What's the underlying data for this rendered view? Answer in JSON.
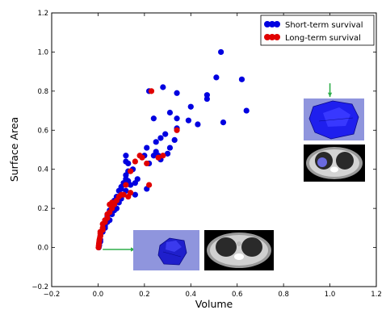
{
  "chart_data": {
    "type": "scatter",
    "xlabel": "Volume",
    "ylabel": "Surface Area",
    "xlim": [
      -0.2,
      1.2
    ],
    "ylim": [
      -0.2,
      1.2
    ],
    "x_ticks": [
      "−0.2",
      "0.0",
      "0.2",
      "0.4",
      "0.6",
      "0.8",
      "1.0",
      "1.2"
    ],
    "y_ticks": [
      "−0.2",
      "0.0",
      "0.2",
      "0.4",
      "0.6",
      "0.8",
      "1.0",
      "1.2"
    ],
    "x_tick_values": [
      -0.2,
      0.0,
      0.2,
      0.4,
      0.6,
      0.8,
      1.0,
      1.2
    ],
    "y_tick_values": [
      -0.2,
      0.0,
      0.2,
      0.4,
      0.6,
      0.8,
      1.0,
      1.2
    ],
    "grid": false,
    "legend_position": "top-right",
    "series": [
      {
        "name": "Short-term survival",
        "color": "#0000e0",
        "points": [
          [
            0.53,
            1.0
          ],
          [
            0.62,
            0.86
          ],
          [
            0.51,
            0.87
          ],
          [
            0.28,
            0.82
          ],
          [
            0.22,
            0.8
          ],
          [
            0.34,
            0.79
          ],
          [
            0.47,
            0.78
          ],
          [
            0.64,
            0.7
          ],
          [
            0.47,
            0.76
          ],
          [
            0.4,
            0.72
          ],
          [
            0.31,
            0.69
          ],
          [
            0.24,
            0.66
          ],
          [
            0.34,
            0.66
          ],
          [
            0.39,
            0.65
          ],
          [
            0.43,
            0.63
          ],
          [
            0.54,
            0.64
          ],
          [
            0.34,
            0.61
          ],
          [
            0.29,
            0.58
          ],
          [
            0.27,
            0.56
          ],
          [
            0.33,
            0.55
          ],
          [
            0.25,
            0.54
          ],
          [
            0.21,
            0.51
          ],
          [
            0.31,
            0.51
          ],
          [
            0.25,
            0.49
          ],
          [
            0.24,
            0.47
          ],
          [
            0.26,
            0.47
          ],
          [
            0.3,
            0.48
          ],
          [
            0.27,
            0.45
          ],
          [
            0.2,
            0.47
          ],
          [
            0.12,
            0.47
          ],
          [
            0.12,
            0.44
          ],
          [
            0.13,
            0.43
          ],
          [
            0.15,
            0.4
          ],
          [
            0.22,
            0.43
          ],
          [
            0.17,
            0.35
          ],
          [
            0.12,
            0.37
          ],
          [
            0.12,
            0.35
          ],
          [
            0.13,
            0.34
          ],
          [
            0.16,
            0.33
          ],
          [
            0.14,
            0.32
          ],
          [
            0.1,
            0.31
          ],
          [
            0.11,
            0.33
          ],
          [
            0.1,
            0.3
          ],
          [
            0.09,
            0.29
          ],
          [
            0.12,
            0.29
          ],
          [
            0.08,
            0.26
          ],
          [
            0.1,
            0.25
          ],
          [
            0.07,
            0.24
          ],
          [
            0.09,
            0.23
          ],
          [
            0.06,
            0.22
          ],
          [
            0.08,
            0.2
          ],
          [
            0.05,
            0.19
          ],
          [
            0.07,
            0.19
          ],
          [
            0.06,
            0.17
          ],
          [
            0.04,
            0.16
          ],
          [
            0.05,
            0.14
          ],
          [
            0.04,
            0.13
          ],
          [
            0.03,
            0.11
          ],
          [
            0.03,
            0.1
          ],
          [
            0.02,
            0.09
          ],
          [
            0.02,
            0.08
          ],
          [
            0.01,
            0.06
          ],
          [
            0.01,
            0.04
          ],
          [
            0.01,
            0.03
          ],
          [
            0.005,
            0.02
          ],
          [
            0.005,
            0.01
          ],
          [
            0.003,
            0.0
          ],
          [
            0.16,
            0.27
          ],
          [
            0.21,
            0.3
          ],
          [
            0.13,
            0.39
          ]
        ]
      },
      {
        "name": "Long-term survival",
        "color": "#e00000",
        "points": [
          [
            0.23,
            0.8
          ],
          [
            0.34,
            0.6
          ],
          [
            0.28,
            0.47
          ],
          [
            0.19,
            0.46
          ],
          [
            0.18,
            0.47
          ],
          [
            0.16,
            0.44
          ],
          [
            0.21,
            0.43
          ],
          [
            0.14,
            0.39
          ],
          [
            0.26,
            0.46
          ],
          [
            0.22,
            0.32
          ],
          [
            0.12,
            0.32
          ],
          [
            0.14,
            0.28
          ],
          [
            0.13,
            0.26
          ],
          [
            0.11,
            0.27
          ],
          [
            0.1,
            0.27
          ],
          [
            0.09,
            0.26
          ],
          [
            0.06,
            0.23
          ],
          [
            0.07,
            0.22
          ],
          [
            0.05,
            0.22
          ],
          [
            0.06,
            0.2
          ],
          [
            0.05,
            0.18
          ],
          [
            0.04,
            0.17
          ],
          [
            0.04,
            0.15
          ],
          [
            0.03,
            0.14
          ],
          [
            0.03,
            0.13
          ],
          [
            0.02,
            0.12
          ],
          [
            0.02,
            0.1
          ],
          [
            0.02,
            0.09
          ],
          [
            0.01,
            0.08
          ],
          [
            0.01,
            0.07
          ],
          [
            0.01,
            0.06
          ],
          [
            0.008,
            0.05
          ],
          [
            0.006,
            0.04
          ],
          [
            0.005,
            0.03
          ],
          [
            0.004,
            0.02
          ],
          [
            0.003,
            0.01
          ],
          [
            0.002,
            0.0
          ],
          [
            0.08,
            0.24
          ]
        ]
      }
    ],
    "annotations": [
      {
        "kind": "arrow",
        "color": "#2eae4a",
        "from": [
          0.02,
          -0.01
        ],
        "to": [
          0.16,
          -0.01
        ]
      },
      {
        "kind": "arrow",
        "color": "#2eae4a",
        "from": [
          1.0,
          0.84
        ],
        "to": [
          1.0,
          0.77
        ]
      }
    ]
  }
}
